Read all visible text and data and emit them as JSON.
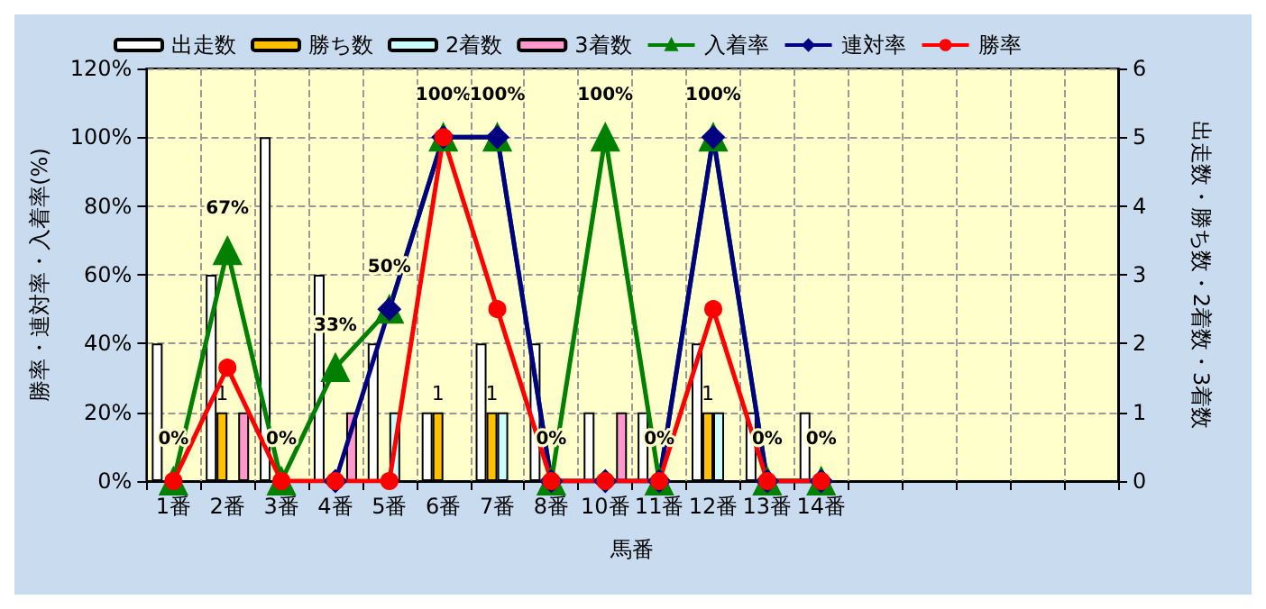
{
  "chart_data": {
    "type": "bar",
    "xlabel": "馬番",
    "ylabel": "勝率・連対率・入着率(%)",
    "y2label": "出走数・勝ち数・2着数・3着数",
    "categories": [
      "1番",
      "2番",
      "3番",
      "4番",
      "5番",
      "6番",
      "7番",
      "8番",
      "10番",
      "11番",
      "12番",
      "13番",
      "14番",
      null,
      null,
      null,
      null,
      null
    ],
    "ylim": [
      0,
      120
    ],
    "yticks": [
      {
        "value": 0,
        "label": "0%"
      },
      {
        "value": 20,
        "label": "20%"
      },
      {
        "value": 40,
        "label": "40%"
      },
      {
        "value": 60,
        "label": "60%"
      },
      {
        "value": 80,
        "label": "80%"
      },
      {
        "value": 100,
        "label": "100%"
      },
      {
        "value": 120,
        "label": "120%"
      }
    ],
    "y2lim": [
      0,
      6
    ],
    "y2ticks": [
      0,
      1,
      2,
      3,
      4,
      5,
      6
    ],
    "grid": true,
    "legend": "top",
    "series": [
      {
        "name": "出走数",
        "type": "bar",
        "axis": "y2",
        "color": "#ffffff",
        "values": [
          2,
          3,
          5,
          3,
          2,
          1,
          2,
          2,
          1,
          1,
          2,
          1,
          1,
          null,
          null,
          null,
          null,
          null
        ]
      },
      {
        "name": "勝ち数",
        "axis": "y2",
        "color": "#ffc000",
        "values": [
          0,
          1,
          0,
          0,
          0,
          1,
          1,
          0,
          0,
          0,
          1,
          0,
          0,
          null,
          null,
          null,
          null,
          null
        ],
        "value_labels": [
          null,
          "1",
          null,
          null,
          null,
          "1",
          "1",
          null,
          null,
          null,
          "1",
          null,
          null,
          null,
          null,
          null,
          null,
          null
        ]
      },
      {
        "name": "2着数",
        "axis": "y2",
        "color": "#ccffff",
        "values": [
          0,
          0,
          0,
          0,
          1,
          0,
          1,
          0,
          0,
          0,
          1,
          0,
          0,
          null,
          null,
          null,
          null,
          null
        ]
      },
      {
        "name": "3着数",
        "axis": "y2",
        "color": "#ff99cc",
        "values": [
          0,
          1,
          0,
          1,
          0,
          0,
          0,
          0,
          1,
          0,
          0,
          0,
          0,
          null,
          null,
          null,
          null,
          null
        ]
      },
      {
        "name": "入着率",
        "type": "line",
        "color": "#008000",
        "marker": "triangle",
        "values": [
          0,
          67,
          0,
          33,
          50,
          100,
          100,
          0,
          100,
          0,
          100,
          0,
          0,
          null,
          null,
          null,
          null,
          null
        ],
        "value_labels": [
          "0%",
          "67%",
          "0%",
          "33%",
          "50%",
          "100%",
          "100%",
          "0%",
          "100%",
          "0%",
          "100%",
          "0%",
          "0%",
          null,
          null,
          null,
          null,
          null
        ]
      },
      {
        "name": "連対率",
        "type": "line",
        "color": "#000080",
        "marker": "diamond",
        "values": [
          null,
          null,
          null,
          0,
          50,
          100,
          100,
          0,
          0,
          0,
          100,
          0,
          0,
          null,
          null,
          null,
          null,
          null
        ]
      },
      {
        "name": "勝率",
        "type": "line",
        "color": "#ff0000",
        "marker": "circle",
        "values": [
          0,
          33,
          0,
          0,
          0,
          100,
          50,
          0,
          0,
          0,
          50,
          0,
          0,
          null,
          null,
          null,
          null,
          null
        ]
      }
    ]
  }
}
